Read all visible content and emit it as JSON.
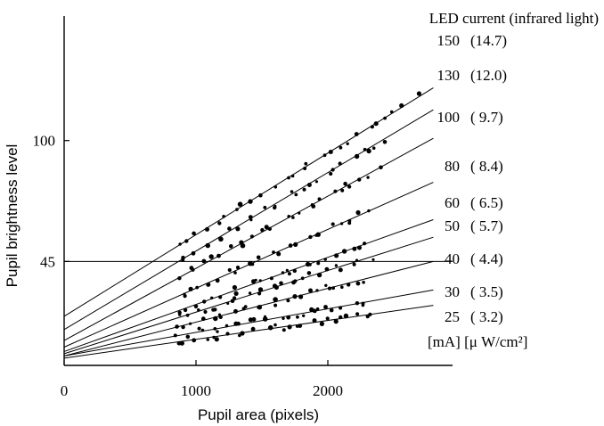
{
  "chart_data": {
    "type": "scatter",
    "xlabel": "Pupil area (pixels)",
    "ylabel": "Pupil brightness level",
    "xlim": [
      0,
      2800
    ],
    "ylim": [
      -10,
      140
    ],
    "x_ticks": [
      {
        "value": 0,
        "label": "0"
      },
      {
        "value": 1000,
        "label": "1000"
      },
      {
        "value": 2000,
        "label": "2000"
      }
    ],
    "y_ticks": [
      {
        "value": 45,
        "label": "45"
      },
      {
        "value": 100,
        "label": "100"
      }
    ],
    "reference_line": {
      "y": 45
    },
    "legend_header": "LED current (infrared light)",
    "units_label": "[mA] [μ W/cm²]",
    "series": [
      {
        "current": "150",
        "irradiance": "(14.7)",
        "intercept": 20,
        "end": 124,
        "x_max": 2650
      },
      {
        "current": "130",
        "irradiance": "(12.0)",
        "intercept": 14,
        "end": 114,
        "x_max": 2450
      },
      {
        "current": "100",
        "irradiance": "( 9.7)",
        "intercept": 9,
        "end": 101,
        "x_max": 2380
      },
      {
        "current": "80",
        "irradiance": "( 8.4)",
        "intercept": 6,
        "end": 81,
        "x_max": 2300
      },
      {
        "current": "60",
        "irradiance": "( 6.5)",
        "intercept": 4,
        "end": 64,
        "x_max": 2300
      },
      {
        "current": "50",
        "irradiance": "( 5.7)",
        "intercept": 3,
        "end": 56,
        "x_max": 2300
      },
      {
        "current": "40",
        "irradiance": "( 4.4)",
        "intercept": 2,
        "end": 45,
        "x_max": 2300
      },
      {
        "current": "30",
        "irradiance": "( 3.5)",
        "intercept": 2,
        "end": 32,
        "x_max": 2300
      },
      {
        "current": "25",
        "irradiance": "( 3.2)",
        "intercept": 1,
        "end": 25,
        "x_max": 2350
      }
    ]
  }
}
